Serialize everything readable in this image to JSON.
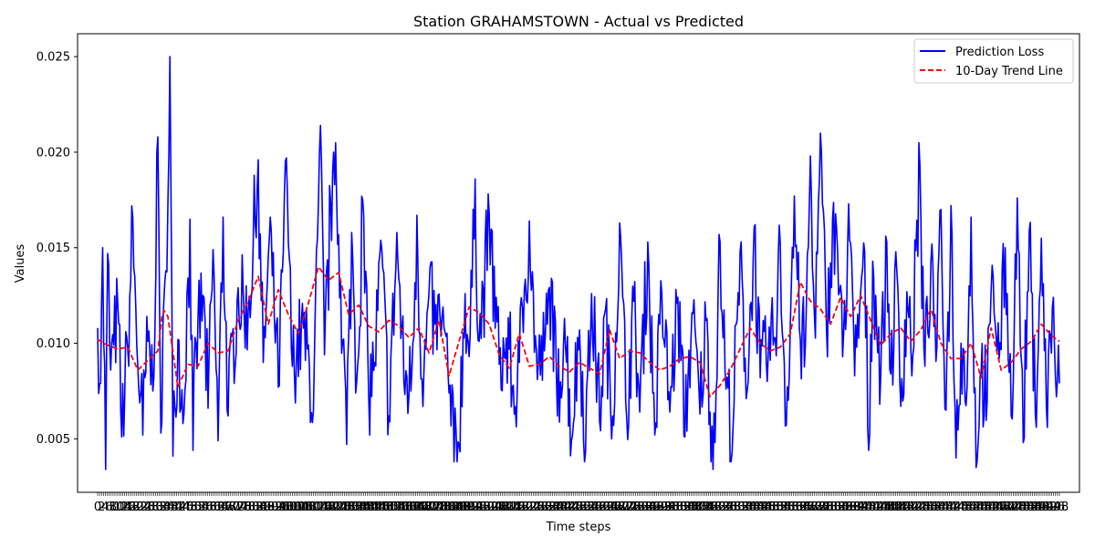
{
  "chart_data": {
    "type": "line",
    "title": "Station GRAHAMSTOWN - Actual vs Predicted",
    "xlabel": "Time steps",
    "ylabel": "Values",
    "ylim": [
      0.0022,
      0.0262
    ],
    "yticks": [
      "0.005",
      "0.010",
      "0.015",
      "0.020",
      "0.025"
    ],
    "ytick_values": [
      0.005,
      0.01,
      0.015,
      0.02,
      0.025
    ],
    "grid": false,
    "legend_position": "top-right",
    "x_tick_count": 500,
    "series": [
      {
        "name": "Prediction Loss",
        "color": "#0000ff",
        "style": "solid",
        "anchors": [
          [
            0,
            0.0108
          ],
          [
            3,
            0.0079
          ],
          [
            5,
            0.015
          ],
          [
            8,
            0.0034
          ],
          [
            10,
            0.0147
          ],
          [
            13,
            0.0086
          ],
          [
            16,
            0.0099
          ],
          [
            20,
            0.0121
          ],
          [
            24,
            0.0051
          ],
          [
            30,
            0.0097
          ],
          [
            35,
            0.0166
          ],
          [
            40,
            0.0088
          ],
          [
            45,
            0.0052
          ],
          [
            50,
            0.0101
          ],
          [
            55,
            0.0075
          ],
          [
            60,
            0.0208
          ],
          [
            63,
            0.0053
          ],
          [
            68,
            0.0138
          ],
          [
            72,
            0.025
          ],
          [
            75,
            0.0041
          ],
          [
            80,
            0.0102
          ],
          [
            85,
            0.0058
          ],
          [
            92,
            0.0165
          ],
          [
            95,
            0.0044
          ],
          [
            100,
            0.0113
          ],
          [
            105,
            0.0125
          ],
          [
            110,
            0.0066
          ],
          [
            115,
            0.0149
          ],
          [
            120,
            0.0049
          ],
          [
            125,
            0.0166
          ],
          [
            130,
            0.0062
          ],
          [
            140,
            0.0129
          ],
          [
            150,
            0.0117
          ],
          [
            160,
            0.0196
          ],
          [
            165,
            0.009
          ],
          [
            172,
            0.0166
          ],
          [
            180,
            0.0077
          ],
          [
            188,
            0.0197
          ],
          [
            194,
            0.0088
          ],
          [
            205,
            0.0108
          ],
          [
            215,
            0.0065
          ],
          [
            222,
            0.0214
          ],
          [
            226,
            0.0094
          ],
          [
            232,
            0.0174
          ],
          [
            237,
            0.0205
          ],
          [
            242,
            0.0132
          ],
          [
            248,
            0.0047
          ],
          [
            253,
            0.0158
          ],
          [
            258,
            0.008
          ],
          [
            264,
            0.0175
          ],
          [
            270,
            0.0071
          ],
          [
            276,
            0.009
          ],
          [
            282,
            0.0154
          ],
          [
            290,
            0.0062
          ],
          [
            298,
            0.0158
          ],
          [
            305,
            0.008
          ],
          [
            312,
            0.0075
          ],
          [
            318,
            0.0167
          ],
          [
            324,
            0.0067
          ],
          [
            330,
            0.0126
          ],
          [
            336,
            0.011
          ],
          [
            343,
            0.0114
          ],
          [
            350,
            0.0074
          ],
          [
            355,
            0.0038
          ],
          [
            360,
            0.0047
          ],
          [
            366,
            0.0126
          ],
          [
            370,
            0.0093
          ],
          [
            376,
            0.0186
          ],
          [
            380,
            0.0101
          ],
          [
            390,
            0.0168
          ],
          [
            400,
            0.0089
          ],
          [
            410,
            0.0097
          ],
          [
            415,
            0.0063
          ],
          [
            420,
            0.009
          ],
          [
            425,
            0.0128
          ],
          [
            430,
            0.0164
          ],
          [
            438,
            0.0081
          ],
          [
            445,
            0.0096
          ],
          [
            452,
            0.0134
          ],
          [
            458,
            0.0062
          ],
          [
            465,
            0.0113
          ],
          [
            472,
            0.0049
          ],
          [
            480,
            0.0107
          ],
          [
            486,
            0.0043
          ],
          [
            492,
            0.0126
          ],
          [
            500,
            0.0059
          ],
          [
            506,
            0.0118
          ],
          [
            512,
            0.005
          ],
          [
            520,
            0.0163
          ],
          [
            527,
            0.0061
          ],
          [
            534,
            0.0122
          ],
          [
            540,
            0.0064
          ],
          [
            548,
            0.0153
          ],
          [
            555,
            0.0052
          ],
          [
            562,
            0.0126
          ],
          [
            570,
            0.0064
          ],
          [
            578,
            0.0124
          ],
          [
            585,
            0.0051
          ],
          [
            592,
            0.0116
          ],
          [
            600,
            0.0063
          ],
          [
            606,
            0.0112
          ],
          [
            613,
            0.0034
          ],
          [
            620,
            0.0153
          ],
          [
            626,
            0.0076
          ],
          [
            632,
            0.0043
          ],
          [
            640,
            0.0148
          ],
          [
            647,
            0.0075
          ],
          [
            654,
            0.0161
          ],
          [
            660,
            0.0082
          ],
          [
            668,
            0.0094
          ],
          [
            674,
            0.0103
          ],
          [
            680,
            0.0152
          ],
          [
            686,
            0.0057
          ],
          [
            694,
            0.0177
          ],
          [
            700,
            0.0102
          ],
          [
            705,
            0.0099
          ],
          [
            710,
            0.0198
          ],
          [
            714,
            0.0115
          ],
          [
            720,
            0.021
          ],
          [
            726,
            0.0108
          ],
          [
            732,
            0.0165
          ],
          [
            736,
            0.016
          ],
          [
            742,
            0.0093
          ],
          [
            748,
            0.0173
          ],
          [
            754,
            0.0083
          ],
          [
            760,
            0.0127
          ],
          [
            764,
            0.0148
          ],
          [
            768,
            0.0044
          ],
          [
            772,
            0.0143
          ],
          [
            780,
            0.0083
          ],
          [
            786,
            0.0153
          ],
          [
            790,
            0.0084
          ],
          [
            796,
            0.0138
          ],
          [
            800,
            0.0067
          ],
          [
            806,
            0.0127
          ],
          [
            812,
            0.0094
          ],
          [
            818,
            0.0205
          ],
          [
            824,
            0.0088
          ],
          [
            830,
            0.0143
          ],
          [
            836,
            0.0098
          ],
          [
            840,
            0.017
          ],
          [
            845,
            0.0065
          ],
          [
            850,
            0.0172
          ],
          [
            855,
            0.004
          ],
          [
            860,
            0.01
          ],
          [
            866,
            0.0077
          ],
          [
            870,
            0.0166
          ],
          [
            875,
            0.0035
          ],
          [
            880,
            0.0084
          ],
          [
            886,
            0.0069
          ],
          [
            892,
            0.0135
          ],
          [
            898,
            0.0092
          ],
          [
            904,
            0.015
          ],
          [
            910,
            0.0062
          ],
          [
            916,
            0.0176
          ],
          [
            922,
            0.0048
          ],
          [
            928,
            0.0159
          ],
          [
            934,
            0.0063
          ],
          [
            940,
            0.0155
          ],
          [
            945,
            0.0067
          ],
          [
            952,
            0.0124
          ],
          [
            955,
            0.0072
          ],
          [
            958,
            0.0079
          ]
        ]
      },
      {
        "name": "10-Day Trend Line",
        "color": "#ff0000",
        "style": "dashed",
        "anchors": [
          [
            0,
            0.0102
          ],
          [
            10,
            0.0099
          ],
          [
            20,
            0.0097
          ],
          [
            30,
            0.0098
          ],
          [
            40,
            0.0086
          ],
          [
            50,
            0.0091
          ],
          [
            60,
            0.0096
          ],
          [
            65,
            0.0118
          ],
          [
            70,
            0.0114
          ],
          [
            80,
            0.0077
          ],
          [
            90,
            0.0089
          ],
          [
            100,
            0.0088
          ],
          [
            110,
            0.01
          ],
          [
            120,
            0.0095
          ],
          [
            130,
            0.0096
          ],
          [
            140,
            0.0112
          ],
          [
            150,
            0.0122
          ],
          [
            160,
            0.0135
          ],
          [
            170,
            0.011
          ],
          [
            180,
            0.0128
          ],
          [
            190,
            0.0115
          ],
          [
            200,
            0.0105
          ],
          [
            210,
            0.0121
          ],
          [
            220,
            0.014
          ],
          [
            230,
            0.0133
          ],
          [
            240,
            0.0137
          ],
          [
            250,
            0.0115
          ],
          [
            260,
            0.012
          ],
          [
            270,
            0.0109
          ],
          [
            280,
            0.0106
          ],
          [
            290,
            0.0112
          ],
          [
            300,
            0.0109
          ],
          [
            310,
            0.0103
          ],
          [
            320,
            0.0108
          ],
          [
            330,
            0.0095
          ],
          [
            340,
            0.0112
          ],
          [
            350,
            0.0083
          ],
          [
            360,
            0.0101
          ],
          [
            370,
            0.0119
          ],
          [
            380,
            0.0116
          ],
          [
            390,
            0.011
          ],
          [
            400,
            0.0094
          ],
          [
            410,
            0.0087
          ],
          [
            420,
            0.0105
          ],
          [
            430,
            0.0088
          ],
          [
            440,
            0.0089
          ],
          [
            450,
            0.0093
          ],
          [
            460,
            0.0088
          ],
          [
            470,
            0.0085
          ],
          [
            480,
            0.009
          ],
          [
            490,
            0.0087
          ],
          [
            500,
            0.0084
          ],
          [
            510,
            0.0107
          ],
          [
            520,
            0.0092
          ],
          [
            530,
            0.0096
          ],
          [
            540,
            0.0095
          ],
          [
            550,
            0.009
          ],
          [
            560,
            0.0086
          ],
          [
            570,
            0.0088
          ],
          [
            580,
            0.0092
          ],
          [
            590,
            0.0093
          ],
          [
            600,
            0.009
          ],
          [
            610,
            0.0072
          ],
          [
            620,
            0.0078
          ],
          [
            630,
            0.0086
          ],
          [
            640,
            0.0097
          ],
          [
            650,
            0.0108
          ],
          [
            660,
            0.01
          ],
          [
            670,
            0.0096
          ],
          [
            680,
            0.0098
          ],
          [
            690,
            0.0105
          ],
          [
            700,
            0.0132
          ],
          [
            710,
            0.0122
          ],
          [
            720,
            0.0118
          ],
          [
            730,
            0.011
          ],
          [
            740,
            0.0124
          ],
          [
            750,
            0.0114
          ],
          [
            760,
            0.0125
          ],
          [
            770,
            0.0112
          ],
          [
            780,
            0.0099
          ],
          [
            790,
            0.0105
          ],
          [
            800,
            0.0108
          ],
          [
            810,
            0.0101
          ],
          [
            820,
            0.0107
          ],
          [
            830,
            0.0118
          ],
          [
            840,
            0.01
          ],
          [
            850,
            0.0092
          ],
          [
            860,
            0.0092
          ],
          [
            870,
            0.01
          ],
          [
            880,
            0.0082
          ],
          [
            890,
            0.0108
          ],
          [
            900,
            0.0086
          ],
          [
            910,
            0.009
          ],
          [
            920,
            0.0097
          ],
          [
            930,
            0.0101
          ],
          [
            940,
            0.011
          ],
          [
            950,
            0.0104
          ],
          [
            958,
            0.0101
          ]
        ]
      }
    ]
  }
}
